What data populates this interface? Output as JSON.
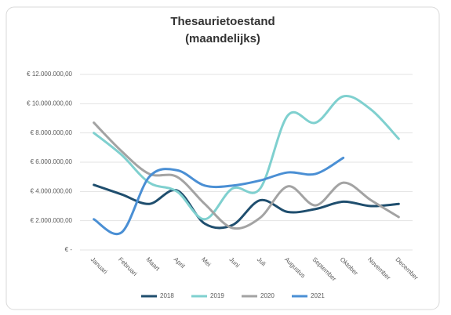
{
  "chart_data": {
    "type": "line",
    "title": "Thesaurietoestand",
    "subtitle": "(maandelijks)",
    "categories": [
      "Januari",
      "Februari",
      "Maart",
      "April",
      "Mei",
      "Juni",
      "Juli",
      "Augustus",
      "September",
      "Oktober",
      "November",
      "December"
    ],
    "series": [
      {
        "name": "2018",
        "color": "#1f4e6e",
        "values": [
          4450000,
          3800000,
          3150000,
          4070000,
          1800000,
          1700000,
          3400000,
          2600000,
          2800000,
          3300000,
          3000000,
          3150000
        ]
      },
      {
        "name": "2019",
        "color": "#7fd0cf",
        "values": [
          8000000,
          6500000,
          4600000,
          4000000,
          2100000,
          4200000,
          4200000,
          9200000,
          8700000,
          10500000,
          9600000,
          7600000
        ]
      },
      {
        "name": "2020",
        "color": "#a3a3a3",
        "values": [
          8700000,
          6750000,
          5200000,
          5000000,
          3150000,
          1500000,
          2200000,
          4350000,
          3050000,
          4600000,
          3400000,
          2250000
        ]
      },
      {
        "name": "2021",
        "color": "#4a8fd4",
        "values": [
          2100000,
          1200000,
          5000000,
          5450000,
          4400000,
          4400000,
          4750000,
          5300000,
          5200000,
          6300000,
          null,
          null
        ]
      }
    ],
    "ylim": [
      0,
      12000000
    ],
    "yticks": [
      {
        "value": 0,
        "label": "€ -"
      },
      {
        "value": 2000000,
        "label": "€ 2.000.000,00"
      },
      {
        "value": 4000000,
        "label": "€ 4.000.000,00"
      },
      {
        "value": 6000000,
        "label": "€ 6.000.000,00"
      },
      {
        "value": 8000000,
        "label": "€ 8.000.000,00"
      },
      {
        "value": 10000000,
        "label": "€ 10.000.000,00"
      },
      {
        "value": 12000000,
        "label": "€ 12.000.000,00"
      }
    ],
    "grid": true,
    "legend": "bottom"
  }
}
